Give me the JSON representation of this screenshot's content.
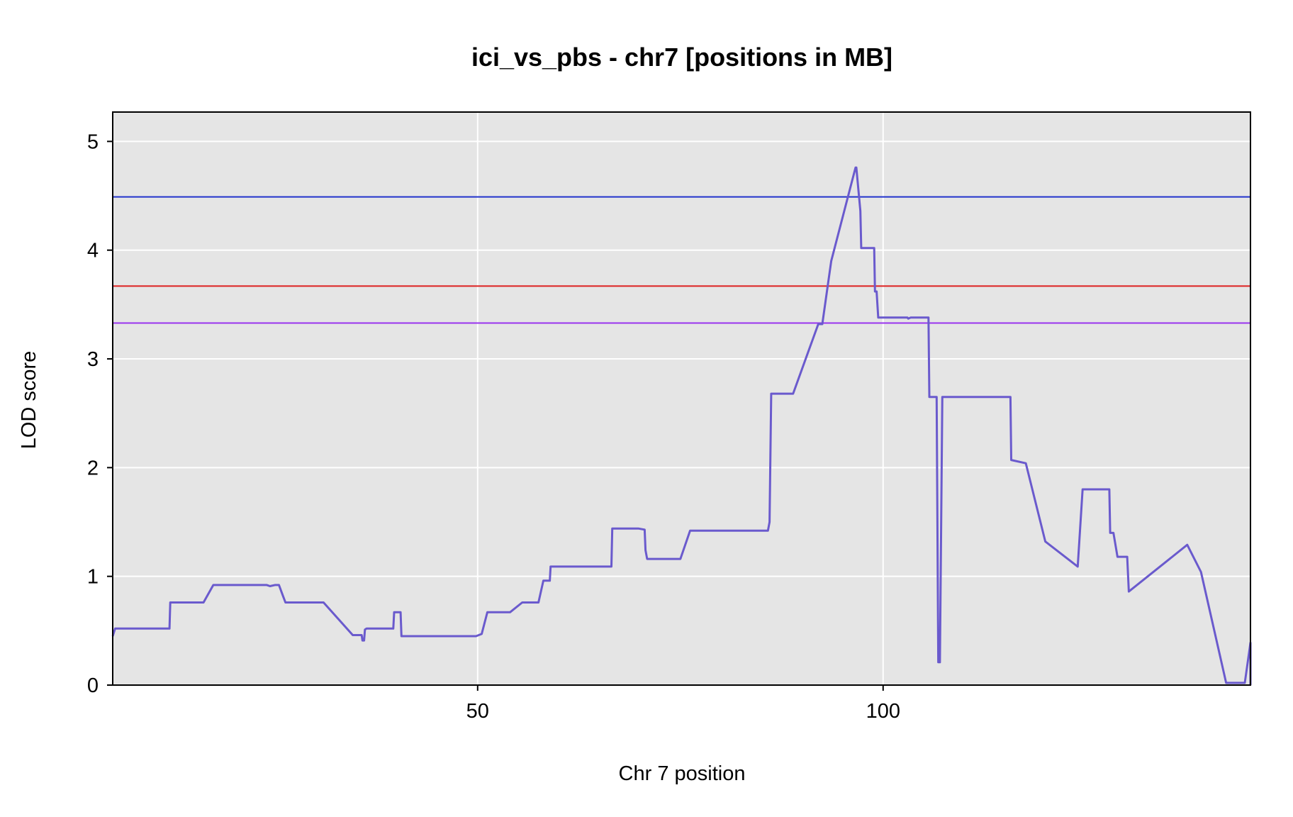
{
  "chart_data": {
    "type": "line",
    "title": "ici_vs_pbs - chr7 [positions in MB]",
    "xlabel": "Chr 7 position",
    "ylabel": "LOD score",
    "xlim": [
      5.0,
      145.3
    ],
    "ylim": [
      0,
      5.27
    ],
    "x_ticks": [
      50,
      100
    ],
    "y_ticks": [
      0,
      1,
      2,
      3,
      4,
      5
    ],
    "grid": true,
    "legend": "none",
    "colors": {
      "background": "#e5e5e5",
      "grid": "#ffffff",
      "lod_line": "#6a5acd",
      "threshold_blue": "#2233cc",
      "threshold_red": "#dd2222",
      "threshold_purple": "#9933ee"
    },
    "thresholds": [
      {
        "value": 4.49,
        "color": "#2233cc"
      },
      {
        "value": 3.67,
        "color": "#dd2222"
      },
      {
        "value": 3.33,
        "color": "#9933ee"
      }
    ],
    "series": [
      {
        "x": [
          5.0,
          5.3,
          5.4,
          12.0,
          12.1,
          16.2,
          17.4,
          24.0,
          24.4,
          25.0,
          25.5,
          26.0,
          26.3,
          31.0,
          34.6,
          35.7,
          35.8,
          36.0,
          36.1,
          36.3,
          39.6,
          39.7,
          40.5,
          40.6,
          45.0,
          49.8,
          50.5,
          51.2,
          54.0,
          55.5,
          57.5,
          58.1,
          58.9,
          59.0,
          66.5,
          66.6,
          69.7,
          69.8,
          70.6,
          70.7,
          70.9,
          71.1,
          75.0,
          76.2,
          80.0,
          85.8,
          86.0,
          86.2,
          88.5,
          88.9,
          92.0,
          92.5,
          93.6,
          96.6,
          96.7,
          97.2,
          97.3,
          98.9,
          99.0,
          99.2,
          99.4,
          103.0,
          103.1,
          103.4,
          103.5,
          104.0,
          105.6,
          105.7,
          106.6,
          106.8,
          107.0,
          107.3,
          115.7,
          115.8,
          117.6,
          120.0,
          124.0,
          124.6,
          127.9,
          128.0,
          128.4,
          128.9,
          129.1,
          130.1,
          130.3,
          137.5,
          139.2,
          142.3,
          144.6,
          147.0,
          145.3
        ],
        "y": [
          0.45,
          0.52,
          0.52,
          0.52,
          0.76,
          0.76,
          0.92,
          0.92,
          0.91,
          0.92,
          0.92,
          0.82,
          0.76,
          0.76,
          0.46,
          0.46,
          0.41,
          0.41,
          0.51,
          0.52,
          0.52,
          0.67,
          0.67,
          0.45,
          0.45,
          0.45,
          0.47,
          0.67,
          0.67,
          0.76,
          0.76,
          0.96,
          0.96,
          1.09,
          1.09,
          1.44,
          1.44,
          1.44,
          1.43,
          1.24,
          1.16,
          1.16,
          1.16,
          1.42,
          1.42,
          1.42,
          1.5,
          2.68,
          2.68,
          2.68,
          3.32,
          3.32,
          3.9,
          4.76,
          4.76,
          4.36,
          4.02,
          4.02,
          3.62,
          3.62,
          3.38,
          3.38,
          3.37,
          3.38,
          3.38,
          3.38,
          3.38,
          2.65,
          2.65,
          0.21,
          0.21,
          2.65,
          2.65,
          2.07,
          2.04,
          1.32,
          1.09,
          1.8,
          1.8,
          1.4,
          1.4,
          1.18,
          1.18,
          1.18,
          0.86,
          1.29,
          1.04,
          0.02,
          0.02,
          0.39,
          0.0
        ]
      }
    ]
  }
}
